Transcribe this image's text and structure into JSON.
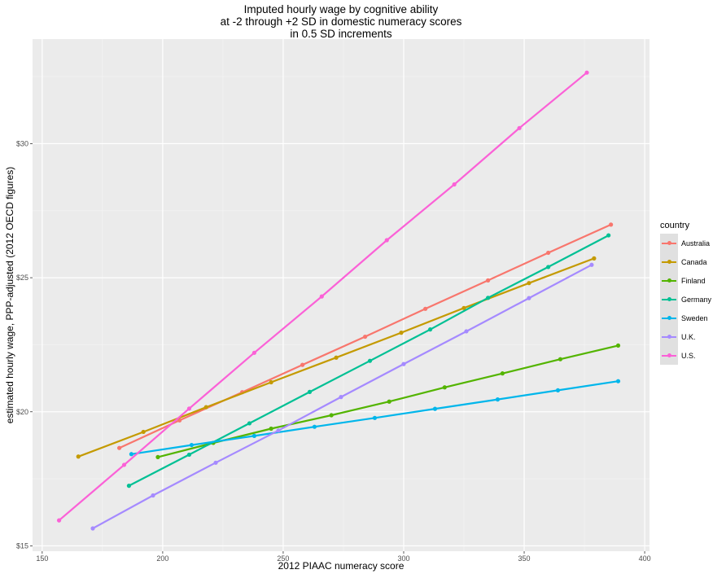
{
  "chart_data": {
    "type": "line",
    "title_lines": [
      "Imputed hourly wage by cognitive ability",
      "at -2 through +2 SD in domestic numeracy scores",
      "in 0.5 SD increments"
    ],
    "xlabel": "2012 PIAAC numeracy score",
    "ylabel": "estimated hourly wage, PPP-adjusted (2012 OECD figures)",
    "xlim": [
      146,
      402
    ],
    "ylim": [
      14.8,
      33.9
    ],
    "x_ticks": [
      150,
      200,
      250,
      300,
      350,
      400
    ],
    "x_tick_labels": [
      "150",
      "200",
      "250",
      "300",
      "350",
      "400"
    ],
    "y_ticks": [
      15,
      20,
      25,
      30
    ],
    "y_tick_labels": [
      "$15",
      "$20",
      "$25",
      "$30"
    ],
    "grid": true,
    "legend_title": "country",
    "legend_position": "right",
    "series": [
      {
        "name": "Australia",
        "color": "#F8766D",
        "x": [
          182,
          207,
          233,
          258,
          284,
          309,
          335,
          360,
          386
        ],
        "y": [
          18.65,
          19.68,
          20.73,
          21.75,
          22.8,
          23.84,
          24.9,
          25.93,
          26.98
        ]
      },
      {
        "name": "Canada",
        "color": "#C49A00",
        "x": [
          165,
          192,
          218,
          245,
          272,
          299,
          325,
          352,
          379
        ],
        "y": [
          18.33,
          19.25,
          20.17,
          21.1,
          22.02,
          22.95,
          23.87,
          24.8,
          25.72
        ]
      },
      {
        "name": "Finland",
        "color": "#53B400",
        "x": [
          198,
          221,
          245,
          270,
          294,
          317,
          341,
          365,
          389
        ],
        "y": [
          18.31,
          18.84,
          19.37,
          19.87,
          20.38,
          20.91,
          21.43,
          21.96,
          22.47
        ]
      },
      {
        "name": "Germany",
        "color": "#00C094",
        "x": [
          186,
          211,
          236,
          261,
          286,
          311,
          335,
          360,
          385
        ],
        "y": [
          17.24,
          18.4,
          19.57,
          20.74,
          21.9,
          23.07,
          24.25,
          25.4,
          26.58
        ]
      },
      {
        "name": "Sweden",
        "color": "#00B6EB",
        "x": [
          187,
          212,
          238,
          263,
          288,
          313,
          339,
          364,
          389
        ],
        "y": [
          18.42,
          18.76,
          19.1,
          19.44,
          19.77,
          20.11,
          20.46,
          20.8,
          21.14
        ]
      },
      {
        "name": "U.K.",
        "color": "#A58AFF",
        "x": [
          171,
          196,
          222,
          248,
          274,
          300,
          326,
          352,
          378
        ],
        "y": [
          15.65,
          16.88,
          18.1,
          19.3,
          20.55,
          21.78,
          23.0,
          24.24,
          25.48
        ]
      },
      {
        "name": "U.S.",
        "color": "#FB61D7",
        "x": [
          157,
          184,
          211,
          238,
          266,
          293,
          321,
          348,
          376
        ],
        "y": [
          15.95,
          18.02,
          20.12,
          22.2,
          24.3,
          26.4,
          28.48,
          30.58,
          32.65
        ]
      }
    ]
  }
}
